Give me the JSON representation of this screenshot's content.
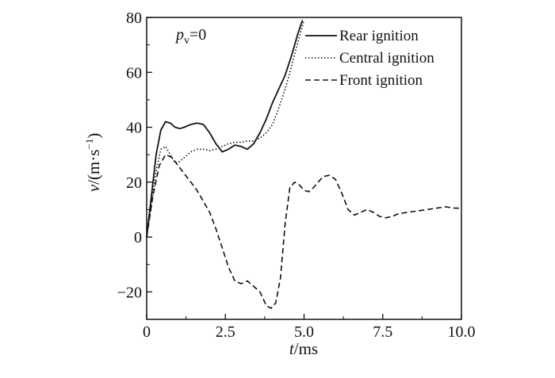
{
  "chart_data": {
    "type": "line",
    "title": "",
    "annotation": {
      "var": "p",
      "sub": "v",
      "rest": "=0"
    },
    "xlabel": {
      "var": "t",
      "rest": "/ms"
    },
    "ylabel": {
      "var": "v",
      "rest": "/(m·s",
      "sup": "−1",
      "close": ")"
    },
    "xlim": [
      0,
      10
    ],
    "ylim": [
      -30,
      80
    ],
    "x_ticks": [
      0,
      2.5,
      5.0,
      7.5,
      10.0
    ],
    "x_tick_labels": [
      "0",
      "2.5",
      "5.0",
      "7.5",
      "10.0"
    ],
    "y_ticks": [
      -20,
      0,
      20,
      40,
      60,
      80
    ],
    "y_tick_labels": [
      "−20",
      "0",
      "20",
      "40",
      "60",
      "80"
    ],
    "grid": false,
    "legend_position": "top-right",
    "series": [
      {
        "name": "Rear ignition",
        "style": "solid",
        "x": [
          0,
          0.15,
          0.3,
          0.45,
          0.6,
          0.75,
          0.9,
          1.05,
          1.2,
          1.4,
          1.6,
          1.8,
          2.0,
          2.2,
          2.4,
          2.6,
          2.8,
          3.0,
          3.2,
          3.4,
          3.6,
          3.8,
          4.0,
          4.2,
          4.4,
          4.6,
          4.8,
          4.95
        ],
        "y": [
          0,
          15,
          30,
          39,
          42,
          41.5,
          40,
          39.5,
          40,
          41,
          41.5,
          41,
          38,
          34,
          31,
          32,
          33.5,
          33,
          32,
          34,
          38,
          43,
          49,
          54,
          59,
          66,
          74,
          79
        ]
      },
      {
        "name": "Central ignition",
        "style": "dotted",
        "x": [
          0,
          0.15,
          0.3,
          0.45,
          0.6,
          0.75,
          0.9,
          1.05,
          1.2,
          1.4,
          1.6,
          1.8,
          2.0,
          2.2,
          2.4,
          2.6,
          2.8,
          3.0,
          3.2,
          3.4,
          3.6,
          3.8,
          4.0,
          4.2,
          4.4,
          4.6,
          4.8,
          5.0
        ],
        "y": [
          0,
          12,
          24,
          32,
          33,
          30,
          27,
          27.5,
          29,
          31,
          32,
          32,
          31.5,
          32,
          33,
          34,
          34.5,
          34.5,
          35,
          35,
          36,
          38,
          41,
          47,
          54,
          62,
          71,
          79
        ]
      },
      {
        "name": "Front ignition",
        "style": "dashed",
        "x": [
          0,
          0.2,
          0.4,
          0.6,
          0.8,
          1.0,
          1.2,
          1.4,
          1.6,
          1.8,
          2.0,
          2.2,
          2.4,
          2.6,
          2.8,
          3.0,
          3.2,
          3.4,
          3.6,
          3.8,
          3.95,
          4.1,
          4.25,
          4.4,
          4.55,
          4.7,
          4.85,
          5.0,
          5.15,
          5.3,
          5.45,
          5.6,
          5.8,
          6.0,
          6.2,
          6.4,
          6.6,
          6.8,
          7.0,
          7.2,
          7.4,
          7.6,
          7.8,
          8.0,
          8.3,
          8.6,
          8.9,
          9.2,
          9.5,
          9.8,
          10.0
        ],
        "y": [
          0,
          15,
          26,
          30,
          29,
          26,
          23,
          20,
          17,
          13,
          9,
          3,
          -4,
          -11,
          -16,
          -17,
          -16,
          -18,
          -20,
          -25,
          -26,
          -24,
          -15,
          5,
          18,
          20,
          19,
          17,
          16.5,
          18,
          20,
          22,
          22.5,
          21,
          16,
          10,
          8,
          9,
          10,
          9,
          7.5,
          7,
          7.5,
          8.5,
          9,
          9.5,
          10,
          10.5,
          11,
          10.5,
          10.5
        ]
      }
    ]
  }
}
